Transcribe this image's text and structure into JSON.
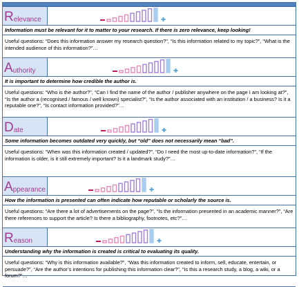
{
  "criteria": [
    {
      "initial": "R",
      "rest": "elevance",
      "summary": "Information must be relevant for it to matter to your research. If there is zero relevance, keep looking!",
      "questions_label": "Useful questions:",
      "questions_text": "“Does this information answer my research question?”, “Is this information related to my topic?”, “What is the intended audience of this information?”…",
      "level": 0.75
    },
    {
      "initial": "A",
      "rest": "uthority",
      "summary": "It is important to determine how credible the author is.",
      "questions_label": "Useful questions:",
      "questions_text": "“Who is the author?”, “Can I find the name of the author / publisher anywhere on the page I am looking at?”, “Is the author a (recognised / famous / well known) specialist?”, “Is the author associated with an institution / a business? Is it a reputable one?”, “Is contact information provided?”…",
      "level": 0.75
    },
    {
      "initial": "D",
      "rest": "ate",
      "summary": "Some information becomes outdated very quickly, but “old” does not necessarily mean “bad”.",
      "questions_label": "Useful questions:",
      "questions_text": "“When was this information created / updated?”, “Do I need the most up-to-date information?”, “If the information is older, is it still extremely important? Is it a landmark study?”…",
      "level": 0.75
    },
    {
      "initial": "A",
      "rest": "ppearance",
      "summary": "How the information is presented can often indicate how reputable or scholarly the source is.",
      "questions_label": "Useful questions:",
      "questions_text": "“Are there a lot of advertisements on the page?”, “Is the information presented in an academic manner?”, “Are there references to support the article? Is there a bibliography, footnotes, etc?”…",
      "level": 0.75
    },
    {
      "initial": "R",
      "rest": "eason",
      "summary": "Understanding why the information is created is critical to evaluating its quality.",
      "questions_label": "Useful questions:",
      "questions_text": "“Why is this information available?”, “Was this information created to inform, sell, educate, entertain, or persuade?”, “Are the author’s intentions for publishing this information clear?”, “Is this a research study, a blog, a wiki, or a forum?”…",
      "level": 0.75
    }
  ],
  "colors": {
    "accent": "#a23a8f",
    "header_fill": "#d6e4f5",
    "border": "#4a6fa5",
    "minus_sign": "#c2185b",
    "plus_sign": "#5aa5d8",
    "bar_pink": "#e48ab8",
    "bar_purple": "#9e7fd6",
    "bar_blue": "#a9cdf0"
  },
  "icons": [
    "minus-icon",
    "plus-icon"
  ]
}
